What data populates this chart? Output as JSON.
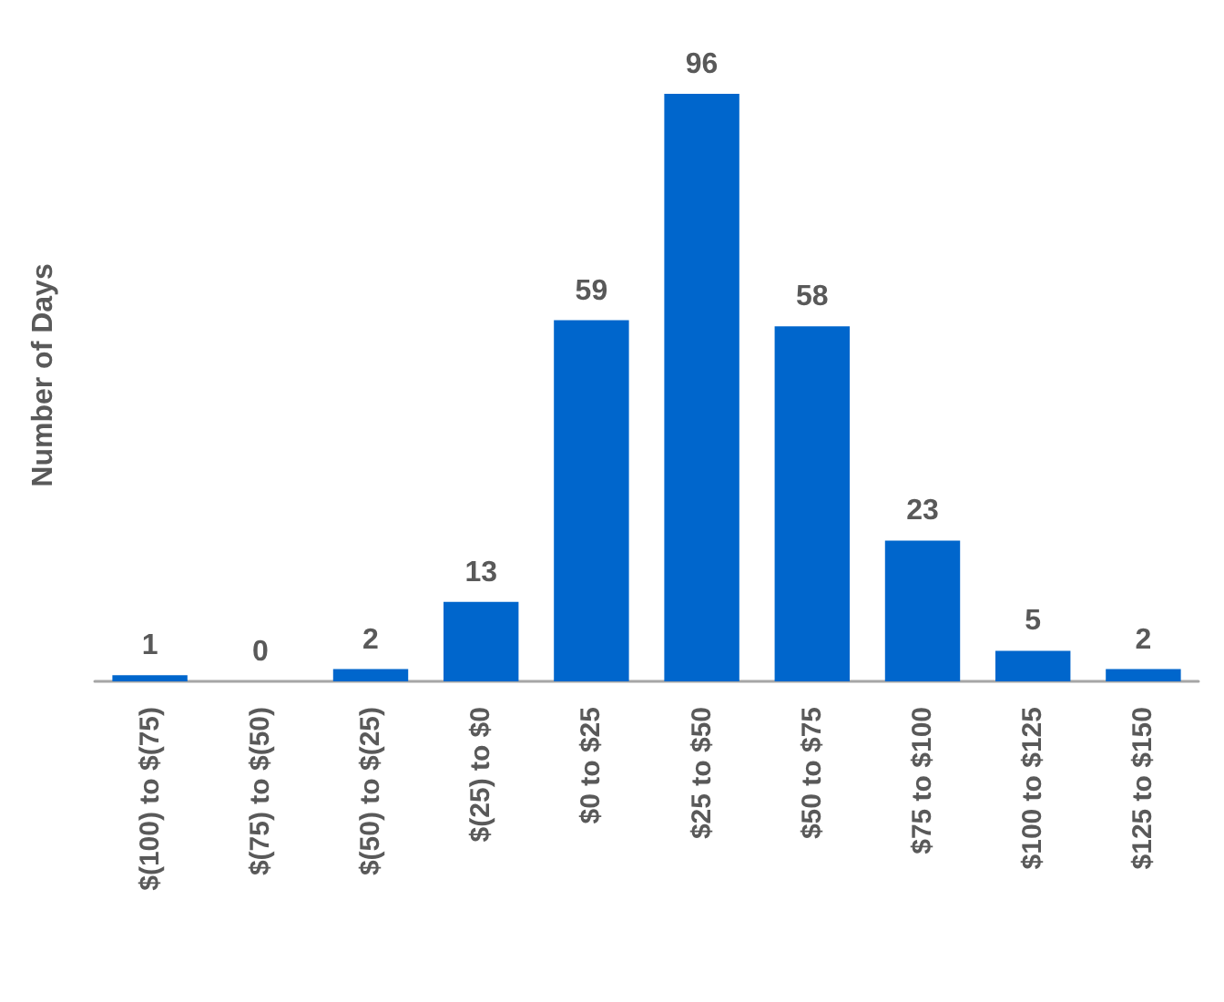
{
  "chart_data": {
    "type": "bar",
    "ylabel": "Number of Days",
    "categories": [
      "$(100) to $(75)",
      "$(75) to $(50)",
      "$(50) to $(25)",
      "$(25) to $0",
      "$0 to $25",
      "$25 to $50",
      "$50 to $75",
      "$75 to $100",
      "$100 to $125",
      "$125 to $150"
    ],
    "values": [
      1,
      0,
      2,
      13,
      59,
      96,
      58,
      23,
      5,
      2
    ],
    "color": "#0066cc",
    "data_labels": true,
    "grid": false
  }
}
